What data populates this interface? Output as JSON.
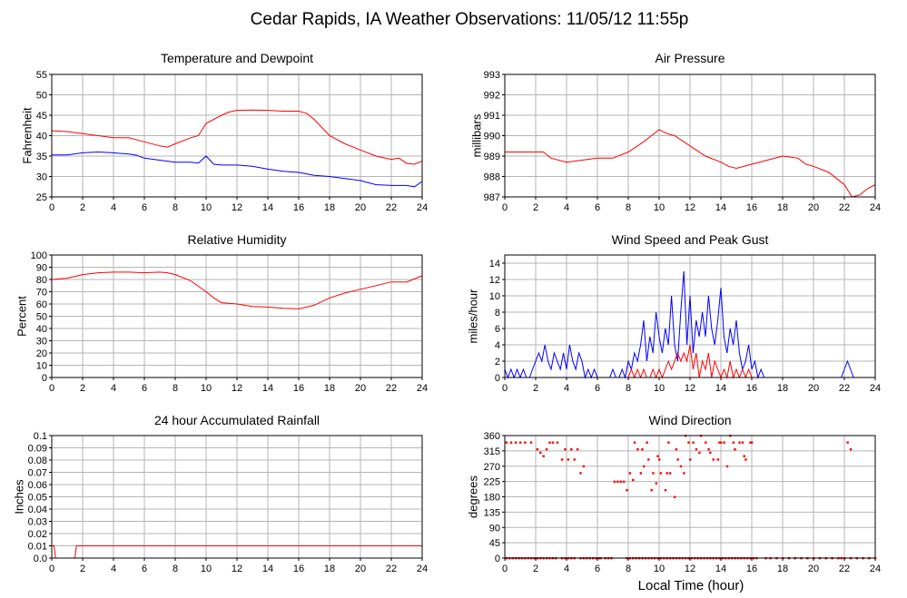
{
  "page": {
    "title": "Cedar Rapids, IA Weather Observations: 11/05/12 11:55p",
    "x_axis_label": "Local Time (hour)"
  },
  "colors": {
    "grid": "#b5b5b5",
    "red": "#ff0000",
    "blue": "#0000ff",
    "frame": "#000000"
  },
  "chart_data": [
    {
      "id": "temp",
      "type": "line",
      "title": "Temperature and Dewpoint",
      "ylabel": "Fahrenheit",
      "xlim": [
        0,
        24
      ],
      "ylim": [
        25,
        55
      ],
      "xticks": [
        0,
        2,
        4,
        6,
        8,
        10,
        12,
        14,
        16,
        18,
        20,
        22,
        24
      ],
      "yticks": [
        25,
        30,
        35,
        40,
        45,
        50,
        55
      ],
      "series": [
        {
          "color": "#ff0000",
          "x": [
            0,
            1,
            2,
            3,
            4,
            5,
            6,
            7,
            7.5,
            8,
            9,
            9.5,
            10,
            10.5,
            11,
            11.5,
            12,
            13,
            14,
            15,
            16,
            16.5,
            17,
            17.5,
            18,
            19,
            20,
            21,
            22,
            22.5,
            23,
            23.5,
            24
          ],
          "y": [
            41.2,
            41.0,
            40.5,
            40.0,
            39.5,
            39.5,
            38.5,
            37.5,
            37.2,
            38.0,
            39.5,
            40.0,
            43.0,
            44.0,
            45.0,
            45.8,
            46.2,
            46.3,
            46.2,
            46.0,
            46.0,
            45.5,
            44.0,
            42.0,
            40.0,
            38.0,
            36.5,
            35.0,
            34.2,
            34.5,
            33.2,
            33.0,
            33.8
          ]
        },
        {
          "color": "#0000ff",
          "x": [
            0,
            1,
            2,
            3,
            4,
            5,
            5.5,
            6,
            7,
            8,
            9,
            9.5,
            10,
            10.5,
            11,
            12,
            13,
            14,
            15,
            16,
            17,
            18,
            19,
            20,
            21,
            22,
            23,
            23.5,
            24
          ],
          "y": [
            35.3,
            35.3,
            35.8,
            36.0,
            35.8,
            35.5,
            35.2,
            34.5,
            34.0,
            33.5,
            33.5,
            33.3,
            35.0,
            33.0,
            32.8,
            32.8,
            32.5,
            31.8,
            31.3,
            31.0,
            30.3,
            30.0,
            29.5,
            29.0,
            28.0,
            27.8,
            27.8,
            27.5,
            28.8
          ]
        }
      ]
    },
    {
      "id": "pressure",
      "type": "line",
      "title": "Air Pressure",
      "ylabel": "millibars",
      "xlim": [
        0,
        24
      ],
      "ylim": [
        987,
        993
      ],
      "xticks": [
        0,
        2,
        4,
        6,
        8,
        10,
        12,
        14,
        16,
        18,
        20,
        22,
        24
      ],
      "yticks": [
        987,
        988,
        989,
        990,
        991,
        992,
        993
      ],
      "series": [
        {
          "color": "#ff0000",
          "x": [
            0,
            1,
            2,
            2.5,
            3,
            4,
            5,
            6,
            7,
            8,
            9,
            9.5,
            10,
            10.5,
            11,
            12,
            13,
            14,
            14.5,
            15,
            16,
            17,
            18,
            19,
            19.5,
            20,
            21,
            21.5,
            22,
            22.5,
            23,
            23.5,
            24
          ],
          "y": [
            989.2,
            989.2,
            989.2,
            989.2,
            988.9,
            988.7,
            988.8,
            988.9,
            988.9,
            989.2,
            989.7,
            990.0,
            990.3,
            990.1,
            990.0,
            989.5,
            989.0,
            988.7,
            988.5,
            988.4,
            988.6,
            988.8,
            989.0,
            988.9,
            988.6,
            988.5,
            988.2,
            987.9,
            987.6,
            987.0,
            987.1,
            987.4,
            987.6
          ]
        }
      ]
    },
    {
      "id": "rh",
      "type": "line",
      "title": "Relative Humidity",
      "ylabel": "Percent",
      "xlim": [
        0,
        24
      ],
      "ylim": [
        0,
        100
      ],
      "xticks": [
        0,
        2,
        4,
        6,
        8,
        10,
        12,
        14,
        16,
        18,
        20,
        22,
        24
      ],
      "yticks": [
        0,
        10,
        20,
        30,
        40,
        50,
        60,
        70,
        80,
        90,
        100
      ],
      "series": [
        {
          "color": "#ff0000",
          "x": [
            0,
            1,
            2,
            3,
            4,
            5,
            6,
            7,
            7.5,
            8,
            9,
            10,
            10.5,
            11,
            12,
            13,
            14,
            15,
            16,
            17,
            18,
            19,
            20,
            21,
            22,
            23,
            24
          ],
          "y": [
            80,
            81,
            84,
            85.5,
            86,
            86,
            85.5,
            86,
            85.5,
            84,
            79,
            70,
            65,
            61,
            60,
            58,
            57.5,
            56.5,
            56,
            59,
            65,
            69,
            72,
            75,
            78,
            78,
            83
          ]
        }
      ]
    },
    {
      "id": "wind",
      "type": "line",
      "title": "Wind Speed and Peak Gust",
      "ylabel": "miles/hour",
      "xlim": [
        0,
        24
      ],
      "ylim": [
        0,
        15
      ],
      "xticks": [
        0,
        2,
        4,
        6,
        8,
        10,
        12,
        14,
        16,
        18,
        20,
        22,
        24
      ],
      "yticks": [
        0,
        2,
        4,
        6,
        8,
        10,
        12,
        14
      ],
      "series": [
        {
          "color": "#0000ff",
          "x": [
            0,
            0.2,
            0.4,
            0.6,
            0.8,
            1.0,
            1.2,
            1.4,
            1.6,
            1.8,
            2.0,
            2.2,
            2.4,
            2.6,
            2.8,
            3.0,
            3.2,
            3.4,
            3.6,
            3.8,
            4.0,
            4.2,
            4.4,
            4.6,
            4.8,
            5.0,
            5.2,
            5.4,
            5.6,
            5.8,
            6.0,
            6.2,
            6.4,
            6.6,
            6.8,
            7.0,
            7.2,
            7.4,
            7.6,
            7.8,
            8.0,
            8.2,
            8.4,
            8.6,
            8.8,
            9.0,
            9.2,
            9.4,
            9.6,
            9.8,
            10.0,
            10.2,
            10.4,
            10.6,
            10.8,
            11.0,
            11.2,
            11.4,
            11.6,
            11.8,
            12.0,
            12.2,
            12.4,
            12.6,
            12.8,
            13.0,
            13.2,
            13.4,
            13.6,
            13.8,
            14.0,
            14.2,
            14.4,
            14.6,
            14.8,
            15.0,
            15.2,
            15.4,
            15.6,
            15.8,
            16.0,
            16.2,
            16.4,
            16.6,
            16.8,
            17.0,
            18,
            20,
            21.8,
            22.0,
            22.2,
            22.4,
            22.6,
            23.0,
            24
          ],
          "y": [
            1,
            0,
            1,
            0,
            1,
            0,
            1,
            0,
            0,
            1,
            2,
            3,
            2,
            4,
            2,
            1,
            3,
            2,
            1,
            3,
            1,
            4,
            2,
            1,
            3,
            2,
            0,
            1,
            0,
            1,
            0,
            0,
            0,
            0,
            0,
            1,
            0,
            0,
            1,
            0,
            2,
            1,
            3,
            2,
            4,
            7,
            2,
            5,
            3,
            8,
            5,
            3,
            6,
            4,
            10,
            4,
            2,
            8,
            13,
            4,
            10,
            3,
            7,
            5,
            8,
            5,
            10,
            6,
            4,
            7,
            11,
            5,
            3,
            6,
            4,
            7,
            3,
            1,
            2,
            4,
            1,
            2,
            0,
            1,
            0,
            0,
            0,
            0,
            0,
            1,
            2,
            1,
            0,
            0,
            0
          ]
        },
        {
          "color": "#ff0000",
          "x": [
            0,
            8.0,
            8.2,
            8.4,
            8.6,
            8.8,
            9.0,
            9.2,
            9.4,
            9.6,
            9.8,
            10.0,
            10.2,
            10.4,
            10.6,
            10.8,
            11.0,
            11.2,
            11.4,
            11.6,
            11.8,
            12.0,
            12.2,
            12.4,
            12.6,
            12.8,
            13.0,
            13.2,
            13.4,
            13.6,
            13.8,
            14.0,
            14.2,
            14.4,
            14.6,
            14.8,
            15.0,
            15.2,
            15.4,
            15.6,
            15.8,
            16.0,
            24
          ],
          "y": [
            0,
            0,
            1,
            0,
            1,
            0,
            1,
            0,
            0,
            1,
            0,
            1,
            0,
            1,
            2,
            1,
            2,
            3,
            2,
            3,
            2,
            4,
            1,
            3,
            0,
            2,
            1,
            3,
            0,
            2,
            1,
            0,
            1,
            0,
            2,
            0,
            1,
            0,
            1,
            0,
            1,
            0,
            0
          ]
        }
      ]
    },
    {
      "id": "rain",
      "type": "line",
      "title": "24 hour Accumulated Rainfall",
      "ylabel": "Inches",
      "xlim": [
        0,
        24
      ],
      "ylim": [
        0,
        0.1
      ],
      "xticks": [
        0,
        2,
        4,
        6,
        8,
        10,
        12,
        14,
        16,
        18,
        20,
        22,
        24
      ],
      "yticks": [
        0.0,
        0.01,
        0.02,
        0.03,
        0.04,
        0.05,
        0.06,
        0.07,
        0.08,
        0.09,
        0.1
      ],
      "ytick_labels": [
        "0.0",
        "0.01",
        "0.02",
        "0.03",
        "0.04",
        "0.05",
        "0.06",
        "0.07",
        "0.08",
        "0.09",
        "0.1"
      ],
      "series": [
        {
          "color": "#ff0000",
          "x": [
            0,
            0.15,
            0.25,
            1.5,
            1.6,
            24
          ],
          "y": [
            0.01,
            0.01,
            0.0,
            0.0,
            0.01,
            0.01
          ]
        }
      ]
    },
    {
      "id": "wdir",
      "type": "scatter",
      "title": "Wind Direction",
      "ylabel": "degrees",
      "xlabel": "Local Time (hour)",
      "xlim": [
        0,
        24
      ],
      "ylim": [
        0,
        360
      ],
      "xticks": [
        0,
        2,
        4,
        6,
        8,
        10,
        12,
        14,
        16,
        18,
        20,
        22,
        24
      ],
      "yticks": [
        0,
        45,
        90,
        135,
        180,
        225,
        270,
        315,
        360
      ],
      "series": [
        {
          "color": "#ff0000",
          "x": [
            0.1,
            0.3,
            0.5,
            0.7,
            0.9,
            1.1,
            1.3,
            1.5,
            1.7,
            1.9,
            2.1,
            2.3,
            2.5,
            2.7,
            2.9,
            3.1,
            3.3,
            0.1,
            0.4,
            0.7,
            1.0,
            1.3,
            1.7,
            2.1,
            2.3,
            2.5,
            2.7,
            2.9,
            3.1,
            3.4,
            3.7,
            3.9,
            4.1,
            4.3,
            4.5,
            4.7,
            4.9,
            5.1,
            3.7,
            3.9,
            4.1,
            4.3,
            4.5,
            4.9,
            5.1,
            5.3,
            5.5,
            5.7,
            5.9,
            6.1,
            6.2,
            6.5,
            6.7,
            6.9,
            7.1,
            7.3,
            7.5,
            7.7,
            7.9,
            8.1,
            8.3,
            7.9,
            8.1,
            8.3,
            8.5,
            8.7,
            8.9,
            9.1,
            9.3,
            9.5,
            9.7,
            9.9,
            10.1,
            10.3,
            10.5,
            10.7,
            10.9,
            11.1,
            11.3,
            11.5,
            11.7,
            11.9,
            12.1,
            12.3,
            12.5,
            12.7,
            12.9,
            13.1,
            13.3,
            13.5,
            13.7,
            13.9,
            14.1,
            14.3,
            14.5,
            14.7,
            14.9,
            15.1,
            15.3,
            15.5,
            15.7,
            15.9,
            16.1,
            16.3,
            8.6,
            9.2,
            9.9,
            10.5,
            11.2,
            11.7,
            12.4,
            13.3,
            13.9,
            14.6,
            15.4,
            16.9,
            17.2,
            17.6,
            18.0,
            18.4,
            18.8,
            19.2,
            19.6,
            20.0,
            20.4,
            20.8,
            21.2,
            21.6,
            22.0,
            22.4,
            22.8,
            23.2,
            23.6,
            24.0,
            21.8,
            22.2,
            22.4
          ],
          "y": [
            0,
            0,
            0,
            0,
            0,
            0,
            0,
            0,
            0,
            0,
            0,
            0,
            0,
            0,
            0,
            0,
            0,
            340,
            340,
            340,
            340,
            340,
            340,
            320,
            310,
            300,
            320,
            340,
            340,
            340,
            290,
            320,
            290,
            320,
            290,
            320,
            250,
            270,
            0,
            0,
            0,
            0,
            0,
            0,
            0,
            0,
            0,
            0,
            0,
            0,
            0,
            0,
            0,
            0,
            225,
            225,
            225,
            225,
            200,
            250,
            230,
            0,
            0,
            0,
            0,
            0,
            0,
            0,
            0,
            0,
            0,
            0,
            0,
            0,
            0,
            0,
            0,
            0,
            0,
            0,
            0,
            0,
            0,
            0,
            0,
            0,
            0,
            0,
            0,
            0,
            0,
            0,
            0,
            0,
            0,
            0,
            0,
            0,
            0,
            0,
            0,
            0,
            0,
            0,
            320,
            340,
            300,
            250,
            290,
            360,
            320,
            310,
            340,
            360,
            340,
            0,
            0,
            0,
            0,
            0,
            0,
            0,
            0,
            0,
            0,
            0,
            0,
            0,
            0,
            0,
            0,
            0,
            0,
            0,
            0,
            340,
            320
          ]
        },
        {
          "color": "#ff0000",
          "x": [
            8.8,
            9.0,
            9.3,
            9.6,
            9.8,
            10.1,
            10.4,
            10.7,
            11.0,
            11.4,
            11.9,
            12.2,
            12.6,
            13.0,
            13.5,
            14.0,
            14.4,
            14.8,
            15.2,
            15.6,
            16.0,
            8.4,
            8.9,
            9.5,
            10.0,
            10.6,
            11.1,
            11.6,
            12.0,
            12.7,
            13.2,
            13.8,
            14.2,
            14.9,
            15.5,
            15.9
          ],
          "y": [
            250,
            270,
            290,
            250,
            220,
            250,
            200,
            250,
            180,
            270,
            340,
            340,
            310,
            340,
            290,
            340,
            270,
            340,
            340,
            290,
            340,
            340,
            320,
            200,
            290,
            340,
            320,
            250,
            290,
            360,
            320,
            290,
            340,
            320,
            300,
            340
          ]
        }
      ]
    }
  ]
}
